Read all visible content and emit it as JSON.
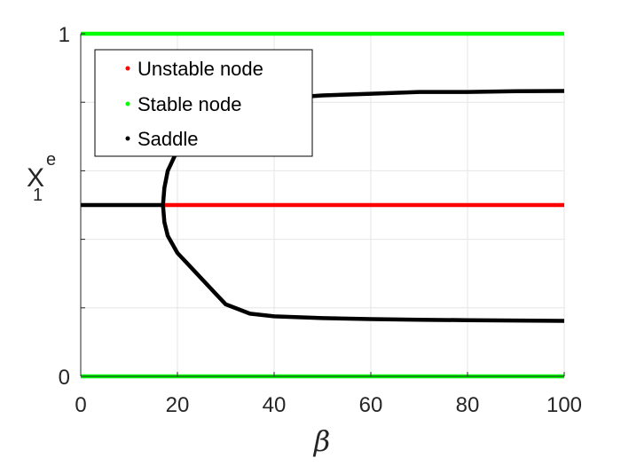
{
  "chart_data": {
    "type": "line",
    "xlabel": "β",
    "ylabel": {
      "main": "X",
      "superscript": "e",
      "subscript": "1"
    },
    "xlim": [
      0,
      100
    ],
    "ylim": [
      0,
      1
    ],
    "x_ticks": [
      0,
      20,
      40,
      60,
      80,
      100
    ],
    "x_tick_labels": [
      "0",
      "20",
      "40",
      "60",
      "80",
      "100"
    ],
    "y_tick_labels_shown": [
      {
        "value": 0,
        "label": "0"
      },
      {
        "value": 1,
        "label": "1"
      }
    ],
    "y_grid": [
      0,
      0.2,
      0.4,
      0.6,
      0.8,
      1.0
    ],
    "grid": true,
    "legend_position": "top-left",
    "series": [
      {
        "name": "Unstable node",
        "color": "#ff0000",
        "points": [
          [
            17,
            0.5
          ],
          [
            100,
            0.5
          ]
        ]
      },
      {
        "name": "Stable node",
        "color": "#00ff00",
        "branches": [
          [
            [
              0,
              1.0
            ],
            [
              100,
              1.0
            ]
          ],
          [
            [
              0,
              0.0
            ],
            [
              100,
              0.0
            ]
          ]
        ]
      },
      {
        "name": "Saddle",
        "color": "#000000",
        "branches": [
          [
            [
              0,
              0.5
            ],
            [
              17,
              0.5
            ]
          ],
          [
            [
              17,
              0.5
            ],
            [
              17.3,
              0.55
            ],
            [
              18,
              0.6
            ],
            [
              20,
              0.66
            ],
            [
              23,
              0.71
            ],
            [
              26,
              0.75
            ],
            [
              30,
              0.78
            ],
            [
              35,
              0.8
            ],
            [
              40,
              0.81
            ],
            [
              50,
              0.82
            ],
            [
              60,
              0.825
            ],
            [
              70,
              0.83
            ],
            [
              80,
              0.83
            ],
            [
              90,
              0.832
            ],
            [
              100,
              0.833
            ]
          ],
          [
            [
              17,
              0.5
            ],
            [
              17.3,
              0.45
            ],
            [
              18,
              0.41
            ],
            [
              20,
              0.36
            ],
            [
              22,
              0.33
            ],
            [
              24,
              0.3
            ],
            [
              26,
              0.27
            ],
            [
              28,
              0.24
            ],
            [
              30,
              0.21
            ],
            [
              35,
              0.183
            ],
            [
              40,
              0.175
            ],
            [
              50,
              0.17
            ],
            [
              60,
              0.167
            ],
            [
              70,
              0.165
            ],
            [
              80,
              0.164
            ],
            [
              90,
              0.163
            ],
            [
              100,
              0.162
            ]
          ]
        ]
      }
    ]
  }
}
